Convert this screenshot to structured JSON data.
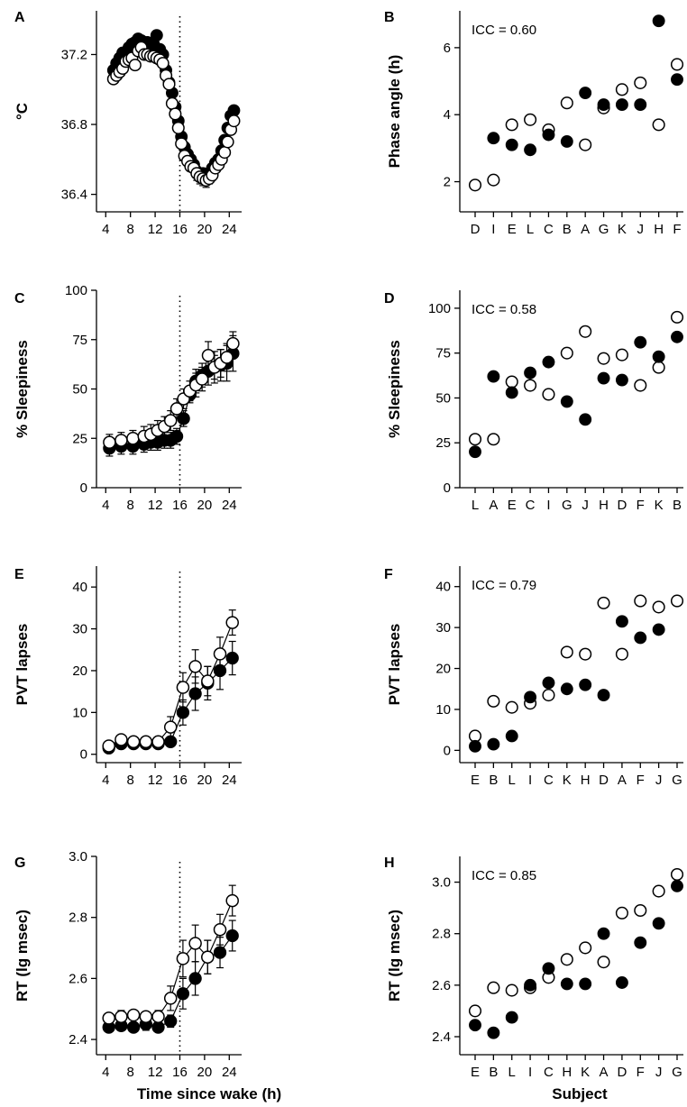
{
  "axis_titles": {
    "left_x": "Time since wake (h)",
    "right_x": "Subject"
  },
  "chart_data": [
    {
      "id": "A",
      "panel_label": "A",
      "type": "line",
      "ylabel": "°C",
      "xlim": [
        2.5,
        26
      ],
      "ylim": [
        36.3,
        37.45
      ],
      "xticks": [
        4,
        8,
        12,
        16,
        20,
        24
      ],
      "yticks": [
        36.4,
        36.8,
        37.2
      ],
      "ytick_labels": [
        "36.4",
        "36.8",
        "37.2"
      ],
      "vline": 16,
      "connect": false,
      "series": [
        {
          "name": "",
          "style": "filled",
          "x": [
            5.25,
            5.75,
            6.25,
            6.75,
            7.25,
            7.75,
            8.25,
            8.75,
            9.25,
            9.75,
            10.25,
            10.75,
            11.25,
            11.75,
            12.25,
            12.75,
            13.25,
            13.75,
            14.25,
            14.75,
            15.25,
            15.75,
            16.25,
            16.75,
            17.25,
            17.75,
            18.25,
            18.75,
            19.25,
            19.75,
            20.25,
            20.75,
            21.25,
            21.75,
            22.25,
            22.75,
            23.25,
            23.75,
            24.25,
            24.75
          ],
          "y": [
            37.11,
            37.15,
            37.18,
            37.21,
            37.21,
            37.24,
            37.26,
            37.27,
            37.29,
            37.28,
            37.27,
            37.27,
            37.25,
            37.26,
            37.31,
            37.23,
            37.2,
            37.11,
            37.04,
            36.98,
            36.9,
            36.82,
            36.73,
            36.67,
            36.63,
            36.6,
            36.57,
            36.53,
            36.52,
            36.52,
            36.51,
            36.52,
            36.55,
            36.58,
            36.6,
            36.65,
            36.71,
            36.78,
            36.85,
            36.88
          ],
          "err": [
            0,
            0,
            0,
            0,
            0,
            0,
            0,
            0,
            0,
            0,
            0,
            0,
            0,
            0,
            0,
            0,
            0,
            0,
            0,
            0,
            0,
            0,
            0,
            0,
            0,
            0,
            0,
            0,
            0,
            0,
            0,
            0,
            0,
            0,
            0,
            0,
            0,
            0,
            0,
            0
          ]
        },
        {
          "name": "",
          "style": "open",
          "x": [
            5.25,
            5.75,
            6.25,
            6.75,
            7.25,
            7.75,
            8.25,
            8.75,
            9.25,
            9.75,
            10.25,
            10.75,
            11.25,
            11.75,
            12.25,
            12.75,
            13.25,
            13.75,
            14.25,
            14.75,
            15.25,
            15.75,
            16.25,
            16.75,
            17.25,
            17.75,
            18.25,
            18.75,
            19.25,
            19.75,
            20.25,
            20.75,
            21.25,
            21.75,
            22.25,
            22.75,
            23.25,
            23.75,
            24.25,
            24.75
          ],
          "y": [
            37.06,
            37.08,
            37.1,
            37.12,
            37.16,
            37.17,
            37.18,
            37.14,
            37.22,
            37.24,
            37.2,
            37.2,
            37.19,
            37.19,
            37.18,
            37.17,
            37.15,
            37.08,
            37.03,
            36.92,
            36.86,
            36.78,
            36.69,
            36.62,
            36.59,
            36.56,
            36.55,
            36.52,
            36.5,
            36.49,
            36.48,
            36.49,
            36.51,
            36.55,
            36.57,
            36.6,
            36.64,
            36.7,
            36.77,
            36.82
          ],
          "err": [
            0,
            0,
            0,
            0,
            0,
            0,
            0,
            0,
            0,
            0,
            0,
            0,
            0,
            0,
            0,
            0,
            0,
            0,
            0,
            0,
            0,
            0,
            0,
            0,
            0,
            0,
            0,
            0.04,
            0.04,
            0.04,
            0.04,
            0.03,
            0.03,
            0,
            0,
            0,
            0,
            0,
            0,
            0
          ]
        }
      ]
    },
    {
      "id": "B",
      "panel_label": "B",
      "type": "scatter",
      "ylabel": "Phase angle (h)",
      "ylim": [
        1.1,
        7.1
      ],
      "yticks": [
        2,
        4,
        6
      ],
      "ytick_labels": [
        "2",
        "4",
        "6"
      ],
      "categories": [
        "D",
        "I",
        "E",
        "L",
        "C",
        "B",
        "A",
        "G",
        "K",
        "J",
        "H",
        "F"
      ],
      "annotation": "ICC = 0.60",
      "series": [
        {
          "name": "",
          "style": "open",
          "values": [
            1.9,
            2.05,
            3.7,
            3.85,
            3.55,
            4.35,
            3.1,
            4.2,
            4.75,
            4.95,
            3.7,
            5.5
          ]
        },
        {
          "name": "",
          "style": "filled",
          "values": [
            null,
            3.3,
            3.1,
            2.95,
            3.4,
            3.2,
            4.65,
            4.3,
            4.3,
            4.3,
            6.8,
            5.05
          ]
        }
      ]
    },
    {
      "id": "C",
      "panel_label": "C",
      "type": "line",
      "ylabel": "% Sleepiness",
      "xlim": [
        2.5,
        26
      ],
      "ylim": [
        0,
        100
      ],
      "xticks": [
        4,
        8,
        12,
        16,
        20,
        24
      ],
      "yticks": [
        0,
        25,
        50,
        75,
        100
      ],
      "ytick_labels": [
        "0",
        "25",
        "50",
        "75",
        "100"
      ],
      "vline": 16,
      "connect": true,
      "series": [
        {
          "name": "",
          "style": "filled",
          "x": [
            4.6,
            6.5,
            8.4,
            10.2,
            11.3,
            12.4,
            13.5,
            14.5,
            15.5,
            16.6,
            17.6,
            18.6,
            19.6,
            20.6,
            21.6,
            22.6,
            23.6,
            24.6
          ],
          "y": [
            20,
            21,
            21,
            22,
            23,
            23,
            24,
            24,
            26,
            35,
            47,
            54,
            57,
            59,
            61,
            62,
            63,
            68
          ],
          "err": [
            4,
            4,
            4,
            4,
            4,
            4,
            4,
            4,
            4,
            4,
            4,
            6,
            6,
            7,
            8,
            8,
            9,
            9
          ]
        },
        {
          "name": "",
          "style": "open",
          "x": [
            4.6,
            6.5,
            8.4,
            10.2,
            11.3,
            12.4,
            13.5,
            14.5,
            15.5,
            16.6,
            17.6,
            18.6,
            19.6,
            20.6,
            21.6,
            22.6,
            23.6,
            24.6
          ],
          "y": [
            23,
            24,
            25,
            26,
            27,
            29,
            31,
            34,
            40,
            45,
            49,
            52,
            55,
            67,
            61,
            63,
            66,
            73
          ],
          "err": [
            4,
            4,
            4,
            5,
            5,
            5,
            5,
            5,
            5,
            5,
            5,
            6,
            6,
            7,
            6,
            7,
            7,
            6
          ]
        }
      ]
    },
    {
      "id": "D",
      "panel_label": "D",
      "type": "scatter",
      "ylabel": "% Sleepiness",
      "ylim": [
        0,
        110
      ],
      "yticks": [
        0,
        25,
        50,
        75,
        100
      ],
      "ytick_labels": [
        "0",
        "25",
        "50",
        "75",
        "100"
      ],
      "categories": [
        "L",
        "A",
        "E",
        "C",
        "I",
        "G",
        "J",
        "H",
        "D",
        "F",
        "K",
        "B"
      ],
      "annotation": "ICC = 0.58",
      "series": [
        {
          "name": "",
          "style": "open",
          "values": [
            27,
            27,
            59,
            57,
            52,
            75,
            87,
            72,
            74,
            57,
            67,
            95
          ]
        },
        {
          "name": "",
          "style": "filled",
          "values": [
            20,
            62,
            53,
            64,
            70,
            48,
            38,
            61,
            60,
            81,
            73,
            84
          ]
        }
      ]
    },
    {
      "id": "E",
      "panel_label": "E",
      "type": "line",
      "ylabel": "PVT lapses",
      "xlim": [
        2.5,
        26
      ],
      "ylim": [
        -2,
        45
      ],
      "xticks": [
        4,
        8,
        12,
        16,
        20,
        24
      ],
      "yticks": [
        0,
        10,
        20,
        30,
        40
      ],
      "ytick_labels": [
        "0",
        "10",
        "20",
        "30",
        "40"
      ],
      "vline": 16,
      "connect": true,
      "series": [
        {
          "name": "",
          "style": "filled",
          "x": [
            4.5,
            6.5,
            8.5,
            10.5,
            12.5,
            14.5,
            16.5,
            18.5,
            20.5,
            22.5,
            24.5
          ],
          "y": [
            1.5,
            2.5,
            2.5,
            2.5,
            2.5,
            3,
            10,
            14.5,
            17,
            20,
            23
          ],
          "err": [
            0.5,
            0.5,
            0.5,
            0.5,
            0.5,
            1,
            3,
            4,
            4,
            4.5,
            4
          ]
        },
        {
          "name": "",
          "style": "open",
          "x": [
            4.5,
            6.5,
            8.5,
            10.5,
            12.5,
            14.5,
            16.5,
            18.5,
            20.5,
            22.5,
            24.5
          ],
          "y": [
            2,
            3.5,
            3,
            3,
            3,
            6.5,
            16,
            21,
            17.5,
            24,
            31.5
          ],
          "err": [
            0.5,
            1,
            0.8,
            0.7,
            0.8,
            2.5,
            3.5,
            4,
            3.5,
            4,
            3
          ]
        }
      ]
    },
    {
      "id": "F",
      "panel_label": "F",
      "type": "scatter",
      "ylabel": "PVT lapses",
      "ylim": [
        -3,
        45
      ],
      "yticks": [
        0,
        10,
        20,
        30,
        40
      ],
      "ytick_labels": [
        "0",
        "10",
        "20",
        "30",
        "40"
      ],
      "categories": [
        "E",
        "B",
        "L",
        "I",
        "C",
        "K",
        "H",
        "D",
        "A",
        "F",
        "J",
        "G"
      ],
      "annotation": "ICC = 0.79",
      "series": [
        {
          "name": "",
          "style": "open",
          "values": [
            3.5,
            12,
            10.5,
            11.5,
            13.5,
            24,
            23.5,
            36,
            23.5,
            36.5,
            35,
            36.5
          ]
        },
        {
          "name": "",
          "style": "filled",
          "values": [
            1,
            1.5,
            3.5,
            13,
            16.5,
            15,
            16,
            13.5,
            31.5,
            27.5,
            29.5,
            null
          ]
        }
      ]
    },
    {
      "id": "G",
      "panel_label": "G",
      "type": "line",
      "ylabel": "RT (lg msec)",
      "xlim": [
        2.5,
        26
      ],
      "ylim": [
        2.35,
        3.0
      ],
      "xticks": [
        4,
        8,
        12,
        16,
        20,
        24
      ],
      "yticks": [
        2.4,
        2.6,
        2.8,
        3.0
      ],
      "ytick_labels": [
        "2.4",
        "2.6",
        "2.8",
        "3.0"
      ],
      "vline": 16,
      "connect": true,
      "series": [
        {
          "name": "",
          "style": "filled",
          "x": [
            4.5,
            6.5,
            8.5,
            10.5,
            12.5,
            14.5,
            16.5,
            18.5,
            20.5,
            22.5,
            24.5
          ],
          "y": [
            2.44,
            2.445,
            2.44,
            2.45,
            2.44,
            2.46,
            2.55,
            2.6,
            2.67,
            2.685,
            2.74
          ],
          "err": [
            0.01,
            0.015,
            0.015,
            0.02,
            0.015,
            0.02,
            0.05,
            0.055,
            0.055,
            0.05,
            0.05
          ]
        },
        {
          "name": "",
          "style": "open",
          "x": [
            4.5,
            6.5,
            8.5,
            10.5,
            12.5,
            14.5,
            16.5,
            18.5,
            20.5,
            22.5,
            24.5
          ],
          "y": [
            2.47,
            2.475,
            2.48,
            2.475,
            2.475,
            2.535,
            2.665,
            2.715,
            2.67,
            2.76,
            2.855
          ],
          "err": [
            0.015,
            0.02,
            0.015,
            0.015,
            0.02,
            0.04,
            0.06,
            0.06,
            0.055,
            0.05,
            0.05
          ]
        }
      ]
    },
    {
      "id": "H",
      "panel_label": "H",
      "type": "scatter",
      "ylabel": "RT (lg msec)",
      "ylim": [
        2.33,
        3.1
      ],
      "yticks": [
        2.4,
        2.6,
        2.8,
        3.0
      ],
      "ytick_labels": [
        "2.4",
        "2.6",
        "2.8",
        "3.0"
      ],
      "categories": [
        "E",
        "B",
        "L",
        "I",
        "C",
        "H",
        "K",
        "A",
        "D",
        "F",
        "J",
        "G"
      ],
      "annotation": "ICC = 0.85",
      "series": [
        {
          "name": "",
          "style": "open",
          "values": [
            2.5,
            2.59,
            2.58,
            2.59,
            2.63,
            2.7,
            2.745,
            2.69,
            2.88,
            2.89,
            2.965,
            3.03
          ]
        },
        {
          "name": "",
          "style": "filled",
          "values": [
            2.445,
            2.415,
            2.475,
            2.6,
            2.665,
            2.605,
            2.605,
            2.8,
            2.61,
            2.765,
            2.84,
            2.985
          ]
        }
      ]
    }
  ]
}
